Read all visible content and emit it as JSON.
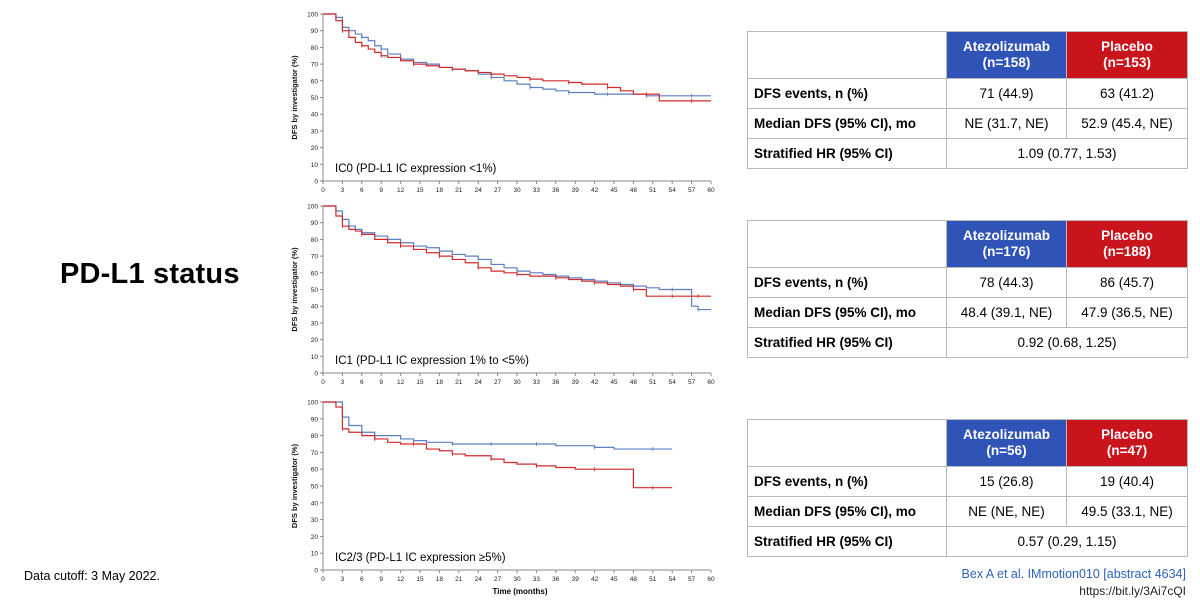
{
  "side_title": "PD-L1 status",
  "cutoff": "Data cutoff: 3 May 2022.",
  "reference": "Bex A et al. IMmotion010 [abstract 4634]",
  "url": "https://bit.ly/3Ai7cQI",
  "table_header": {
    "placebo": "Placebo"
  },
  "row_labels": {
    "events": "DFS events, n (%)",
    "median": "Median DFS (95% CI), mo",
    "hr": "Stratified HR (95% CI)"
  },
  "colors": {
    "atezolizumab": "#5d7ec4",
    "placebo": "#d12a2a",
    "axis": "#888888"
  },
  "chart_data": [
    {
      "type": "line",
      "subtitle": "IC0 (PD-L1 IC expression <1%)",
      "ylabel": "DFS by investigator (%)",
      "xlabel": "",
      "xlim": [
        0,
        60
      ],
      "ylim": [
        0,
        100
      ],
      "xticks": [
        0,
        3,
        6,
        9,
        12,
        15,
        18,
        21,
        24,
        27,
        30,
        33,
        36,
        39,
        42,
        45,
        48,
        51,
        54,
        57,
        60
      ],
      "yticks": [
        0,
        10,
        20,
        30,
        40,
        50,
        60,
        70,
        80,
        90,
        100
      ],
      "series": [
        {
          "name": "Atezolizumab (n=158)",
          "x": [
            0,
            2,
            3,
            4,
            5,
            6,
            7,
            8,
            9,
            10,
            12,
            14,
            16,
            18,
            20,
            22,
            24,
            26,
            28,
            30,
            32,
            34,
            36,
            38,
            40,
            42,
            44,
            46,
            48,
            50,
            52,
            54,
            57,
            60
          ],
          "y": [
            100,
            98,
            92,
            90,
            88,
            86,
            84,
            81,
            79,
            76,
            73,
            71,
            70,
            68,
            67,
            66,
            64,
            62,
            60,
            58,
            56,
            55,
            54,
            53,
            53,
            52,
            52,
            52,
            52,
            51,
            51,
            51,
            51,
            51
          ]
        },
        {
          "name": "Placebo (n=153)",
          "x": [
            0,
            2,
            3,
            4,
            5,
            6,
            7,
            8,
            9,
            10,
            12,
            14,
            16,
            18,
            20,
            22,
            24,
            26,
            28,
            30,
            32,
            34,
            36,
            38,
            40,
            42,
            44,
            46,
            48,
            50,
            52,
            54,
            57,
            60
          ],
          "y": [
            100,
            96,
            90,
            86,
            83,
            81,
            79,
            77,
            75,
            74,
            72,
            70,
            69,
            68,
            67,
            66,
            65,
            64,
            63,
            62,
            61,
            60,
            60,
            59,
            58,
            58,
            56,
            54,
            52,
            52,
            48,
            48,
            48,
            48
          ]
        }
      ],
      "table": {
        "atezo_header": [
          "Atezolizumab",
          "(n=158)"
        ],
        "pbo_header": "(n=153)",
        "events": [
          "71 (44.9)",
          "63 (41.2)"
        ],
        "median": [
          "NE (31.7, NE)",
          "52.9 (45.4, NE)"
        ],
        "hr": "1.09 (0.77, 1.53)"
      }
    },
    {
      "type": "line",
      "subtitle": "IC1 (PD-L1 IC expression 1% to <5%)",
      "ylabel": "DFS by investigator (%)",
      "xlabel": "",
      "xlim": [
        0,
        60
      ],
      "ylim": [
        0,
        100
      ],
      "xticks": [
        0,
        3,
        6,
        9,
        12,
        15,
        18,
        21,
        24,
        27,
        30,
        33,
        36,
        39,
        42,
        45,
        48,
        51,
        54,
        57,
        60
      ],
      "yticks": [
        0,
        10,
        20,
        30,
        40,
        50,
        60,
        70,
        80,
        90,
        100
      ],
      "series": [
        {
          "name": "Atezolizumab (n=176)",
          "x": [
            0,
            2,
            3,
            4,
            5,
            6,
            8,
            10,
            12,
            14,
            16,
            18,
            20,
            22,
            24,
            26,
            28,
            30,
            32,
            34,
            36,
            38,
            40,
            42,
            44,
            46,
            48,
            50,
            52,
            54,
            56,
            57,
            58,
            60
          ],
          "y": [
            100,
            97,
            92,
            88,
            86,
            84,
            82,
            80,
            78,
            76,
            75,
            73,
            71,
            70,
            68,
            65,
            63,
            61,
            60,
            59,
            58,
            57,
            56,
            55,
            54,
            53,
            52,
            51,
            50,
            50,
            50,
            40,
            38,
            38
          ]
        },
        {
          "name": "Placebo (n=188)",
          "x": [
            0,
            2,
            3,
            4,
            5,
            6,
            8,
            10,
            12,
            14,
            16,
            18,
            20,
            22,
            24,
            26,
            28,
            30,
            32,
            34,
            36,
            38,
            40,
            42,
            44,
            46,
            48,
            50,
            52,
            54,
            56,
            57,
            58,
            60
          ],
          "y": [
            100,
            94,
            88,
            86,
            85,
            83,
            80,
            78,
            76,
            74,
            72,
            70,
            68,
            66,
            63,
            61,
            60,
            59,
            58,
            58,
            57,
            56,
            55,
            54,
            53,
            52,
            50,
            46,
            46,
            46,
            46,
            46,
            46,
            46
          ]
        }
      ],
      "table": {
        "atezo_header": [
          "Atezolizumab",
          "(n=176)"
        ],
        "pbo_header": "(n=188)",
        "events": [
          "78 (44.3)",
          "86 (45.7)"
        ],
        "median": [
          "48.4 (39.1, NE)",
          "47.9 (36.5, NE)"
        ],
        "hr": "0.92 (0.68, 1.25)"
      }
    },
    {
      "type": "line",
      "subtitle": "IC2/3 (PD-L1 IC expression ≥5%)",
      "ylabel": "DFS by investigator (%)",
      "xlabel": "Time (months)",
      "xlim": [
        0,
        60
      ],
      "ylim": [
        0,
        100
      ],
      "xticks": [
        0,
        3,
        6,
        9,
        12,
        15,
        18,
        21,
        24,
        27,
        30,
        33,
        36,
        39,
        42,
        45,
        48,
        51,
        54,
        57,
        60
      ],
      "yticks": [
        0,
        10,
        20,
        30,
        40,
        50,
        60,
        70,
        80,
        90,
        100
      ],
      "series": [
        {
          "name": "Atezolizumab (n=56)",
          "x": [
            0,
            2,
            3,
            4,
            6,
            8,
            10,
            12,
            14,
            16,
            18,
            20,
            22,
            24,
            26,
            28,
            30,
            33,
            36,
            39,
            42,
            45,
            48,
            51,
            54
          ],
          "y": [
            100,
            100,
            91,
            86,
            82,
            80,
            80,
            78,
            77,
            76,
            76,
            75,
            75,
            75,
            75,
            75,
            75,
            75,
            74,
            74,
            73,
            72,
            72,
            72,
            72
          ]
        },
        {
          "name": "Placebo (n=47)",
          "x": [
            0,
            2,
            3,
            4,
            6,
            8,
            10,
            12,
            14,
            16,
            18,
            20,
            22,
            24,
            26,
            28,
            30,
            33,
            36,
            39,
            42,
            45,
            48,
            51,
            54
          ],
          "y": [
            100,
            97,
            84,
            82,
            80,
            78,
            76,
            75,
            75,
            72,
            71,
            69,
            68,
            68,
            66,
            64,
            63,
            62,
            61,
            60,
            60,
            60,
            49,
            49,
            49
          ]
        }
      ],
      "table": {
        "atezo_header": [
          "Atezolizumab",
          "(n=56)"
        ],
        "pbo_header": "(n=47)",
        "events": [
          "15 (26.8)",
          "19 (40.4)"
        ],
        "median": [
          "NE (NE, NE)",
          "49.5 (33.1, NE)"
        ],
        "hr": "0.57 (0.29, 1.15)"
      }
    }
  ]
}
